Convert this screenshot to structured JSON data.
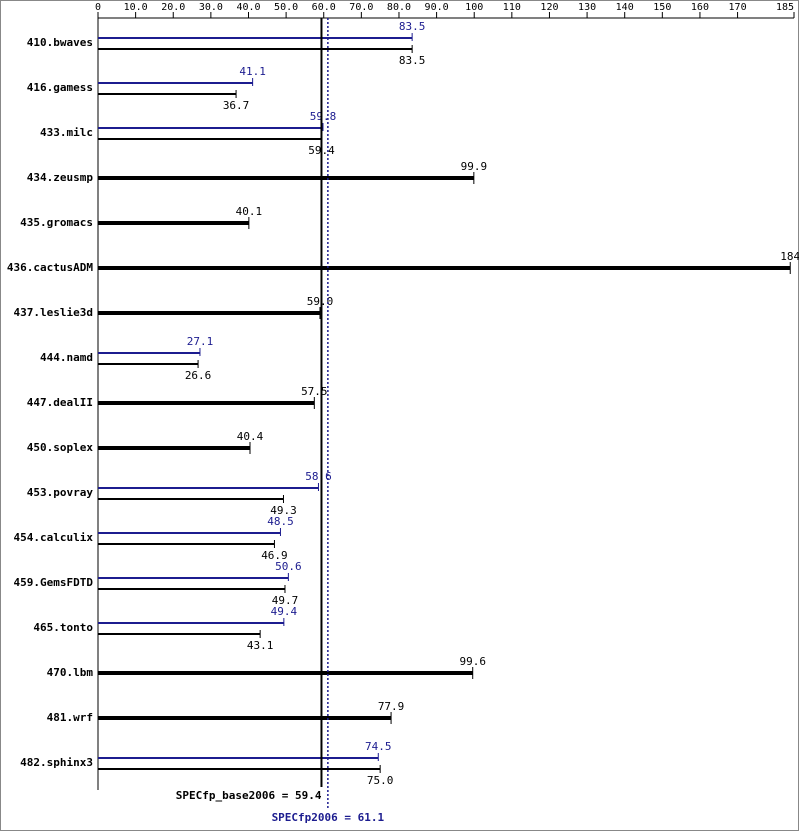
{
  "chart_data": {
    "type": "bar",
    "orientation": "horizontal",
    "categories": [
      "410.bwaves",
      "416.gamess",
      "433.milc",
      "434.zeusmp",
      "435.gromacs",
      "436.cactusADM",
      "437.leslie3d",
      "444.namd",
      "447.dealII",
      "450.soplex",
      "453.povray",
      "454.calculix",
      "459.GemsFDTD",
      "465.tonto",
      "470.lbm",
      "481.wrf",
      "482.sphinx3"
    ],
    "series": [
      {
        "color": "#1c1c8f",
        "values": [
          83.5,
          41.1,
          59.8,
          null,
          null,
          null,
          null,
          27.1,
          null,
          null,
          58.6,
          48.5,
          50.6,
          49.4,
          null,
          null,
          74.5
        ]
      },
      {
        "color": "#000000",
        "values": [
          83.5,
          36.7,
          59.4,
          99.9,
          40.1,
          184,
          59,
          26.6,
          57.5,
          40.4,
          49.3,
          46.9,
          49.7,
          43.1,
          99.6,
          77.9,
          75
        ],
        "value_labels": [
          "83.5",
          "36.7",
          "59.4",
          "99.9",
          "40.1",
          "184",
          "59.0",
          "26.6",
          "57.5",
          "40.4",
          "49.3",
          "46.9",
          "49.7",
          "43.1",
          "99.6",
          "77.9",
          "75.0"
        ]
      }
    ],
    "xlim": [
      0,
      185
    ],
    "xticks": [
      0,
      {
        "value": 10,
        "label": "10.0"
      },
      {
        "value": 20,
        "label": "20.0"
      },
      {
        "value": 30,
        "label": "30.0"
      },
      {
        "value": 40,
        "label": "40.0"
      },
      {
        "value": 50,
        "label": "50.0"
      },
      {
        "value": 60,
        "label": "60.0"
      },
      {
        "value": 70,
        "label": "70.0"
      },
      {
        "value": 80,
        "label": "80.0"
      },
      {
        "value": 90,
        "label": "90.0"
      },
      100,
      110,
      120,
      130,
      140,
      150,
      160,
      170,
      185
    ],
    "reference_lines": [
      {
        "label": "SPECfp_base2006 = 59.4",
        "value": 59.4,
        "color": "#000000",
        "style": "solid"
      },
      {
        "label": "SPECfp2006 = 61.1",
        "value": 61.1,
        "color": "#1c1c8f",
        "style": "dotted"
      }
    ]
  }
}
